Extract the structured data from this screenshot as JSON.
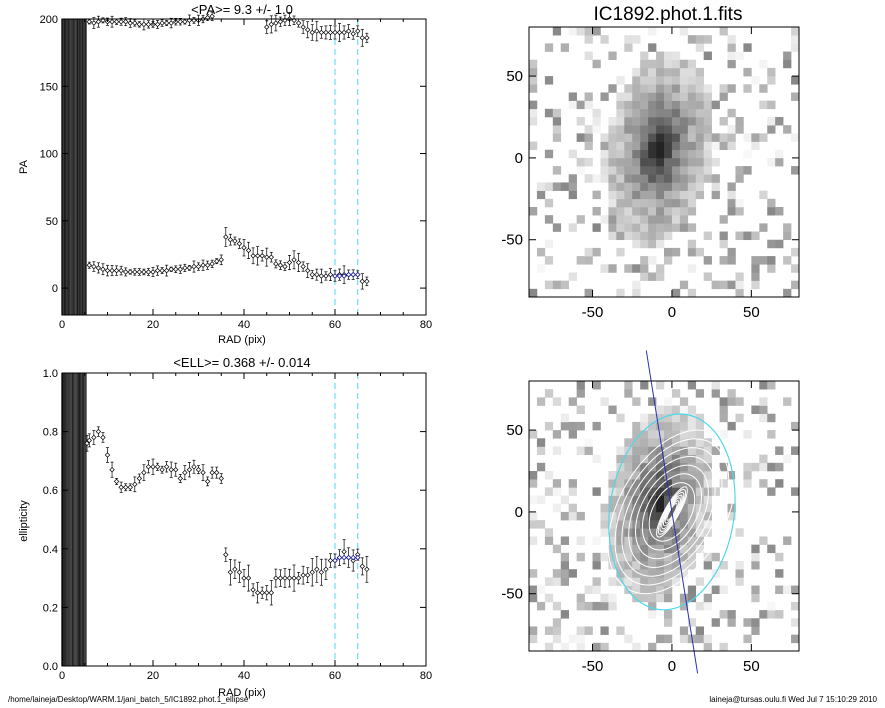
{
  "chart_data": [
    {
      "type": "scatter",
      "title": "<PA>=   9.3 +/-   1.0",
      "xlabel": "RAD (pix)",
      "ylabel": "PA",
      "xlim": [
        0,
        80
      ],
      "ylim": [
        -20,
        200
      ],
      "xticks": [
        0,
        20,
        40,
        60,
        80
      ],
      "yticks": [
        0,
        50,
        100,
        150,
        200
      ],
      "x_tick_labels": [
        "0",
        "20",
        "40",
        "60",
        "80"
      ],
      "y_tick_labels": [
        "0",
        "50",
        "100",
        "150",
        "200"
      ],
      "grid": false,
      "fit_range_lines": [
        60,
        65
      ],
      "dense_band": [
        0,
        5.5
      ],
      "series": [
        {
          "values": [
            [
              6,
              198
            ],
            [
              7,
              197
            ],
            [
              8,
              198
            ],
            [
              9,
              199
            ],
            [
              10,
              198
            ],
            [
              11,
              198
            ],
            [
              12,
              198
            ],
            [
              13,
              198
            ],
            [
              14,
              198
            ],
            [
              15,
              197
            ],
            [
              16,
              197
            ],
            [
              17,
              196
            ],
            [
              18,
              196
            ],
            [
              19,
              196
            ],
            [
              20,
              196
            ],
            [
              21,
              196
            ],
            [
              22,
              197
            ],
            [
              23,
              197
            ],
            [
              24,
              197
            ],
            [
              25,
              198
            ],
            [
              26,
              198
            ],
            [
              27,
              198
            ],
            [
              28,
              199
            ],
            [
              29,
              199
            ],
            [
              30,
              199
            ],
            [
              31,
              200
            ],
            [
              32,
              201
            ],
            [
              33,
              202
            ],
            [
              45,
              194
            ],
            [
              46,
              196
            ],
            [
              47,
              197
            ],
            [
              48,
              198
            ],
            [
              49,
              199
            ],
            [
              50,
              200
            ],
            [
              51,
              199
            ],
            [
              52,
              197
            ],
            [
              53,
              194
            ],
            [
              54,
              192
            ],
            [
              55,
              190
            ],
            [
              56,
              191
            ],
            [
              57,
              190
            ],
            [
              58,
              190
            ],
            [
              59,
              190
            ],
            [
              60,
              190
            ],
            [
              61,
              190
            ],
            [
              62,
              190
            ],
            [
              63,
              191
            ],
            [
              64,
              189
            ],
            [
              65,
              191
            ],
            [
              66,
              186
            ],
            [
              67,
              186
            ]
          ]
        },
        {
          "values": [
            [
              0.5,
              17
            ],
            [
              1,
              17
            ],
            [
              2,
              17
            ],
            [
              3,
              17
            ],
            [
              4,
              16
            ],
            [
              5,
              17
            ],
            [
              6,
              17
            ],
            [
              7,
              16
            ],
            [
              8,
              15
            ],
            [
              9,
              14
            ],
            [
              10,
              13
            ],
            [
              11,
              13
            ],
            [
              12,
              13
            ],
            [
              13,
              13
            ],
            [
              14,
              12
            ],
            [
              15,
              12
            ],
            [
              16,
              12
            ],
            [
              17,
              12
            ],
            [
              18,
              12
            ],
            [
              19,
              12
            ],
            [
              20,
              12
            ],
            [
              21,
              13
            ],
            [
              22,
              13
            ],
            [
              23,
              13
            ],
            [
              24,
              14
            ],
            [
              25,
              14
            ],
            [
              26,
              14
            ],
            [
              27,
              15
            ],
            [
              28,
              15
            ],
            [
              29,
              16
            ],
            [
              30,
              16
            ],
            [
              31,
              17
            ],
            [
              32,
              17
            ],
            [
              33,
              18
            ],
            [
              34,
              20
            ],
            [
              35,
              21
            ],
            [
              36,
              38
            ],
            [
              37,
              36
            ],
            [
              38,
              35
            ],
            [
              39,
              33
            ],
            [
              40,
              30
            ],
            [
              41,
              28
            ],
            [
              42,
              24
            ],
            [
              43,
              24
            ],
            [
              44,
              24
            ],
            [
              45,
              23
            ],
            [
              46,
              23
            ],
            [
              47,
              18
            ],
            [
              48,
              17
            ],
            [
              49,
              16
            ],
            [
              50,
              19
            ],
            [
              51,
              21
            ],
            [
              52,
              19
            ],
            [
              53,
              16
            ],
            [
              54,
              13
            ],
            [
              55,
              10
            ],
            [
              56,
              10
            ],
            [
              57,
              9
            ],
            [
              58,
              9
            ],
            [
              59,
              10
            ],
            [
              60,
              9
            ],
            [
              61,
              10
            ],
            [
              62,
              10
            ],
            [
              63,
              10
            ],
            [
              64,
              10
            ],
            [
              65,
              10
            ],
            [
              66,
              5
            ],
            [
              67,
              5
            ]
          ]
        }
      ],
      "fit_points": [
        [
          60,
          9
        ],
        [
          61,
          9
        ],
        [
          62,
          9
        ],
        [
          63,
          10
        ],
        [
          64,
          10
        ],
        [
          65,
          10
        ]
      ]
    },
    {
      "type": "scatter",
      "title": "<ELL>= 0.368 +/-  0.014",
      "xlabel": "RAD (pix)",
      "ylabel": "ellipticity",
      "xlim": [
        0,
        80
      ],
      "ylim": [
        0,
        1
      ],
      "xticks": [
        0,
        20,
        40,
        60,
        80
      ],
      "yticks": [
        0,
        0.2,
        0.4,
        0.6,
        0.8,
        1.0
      ],
      "x_tick_labels": [
        "0",
        "20",
        "40",
        "60",
        "80"
      ],
      "y_tick_labels": [
        "0.0",
        "0.2",
        "0.4",
        "0.6",
        "0.8",
        "1.0"
      ],
      "grid": false,
      "fit_range_lines": [
        60,
        65
      ],
      "dense_band": [
        0,
        5.5
      ],
      "series": [
        {
          "values": [
            [
              0.5,
              0.75
            ],
            [
              1.5,
              0.75
            ],
            [
              2.5,
              0.75
            ],
            [
              3.5,
              0.75
            ],
            [
              4.5,
              0.75
            ],
            [
              5.5,
              0.76
            ],
            [
              6,
              0.77
            ],
            [
              7,
              0.78
            ],
            [
              8,
              0.8
            ],
            [
              9,
              0.78
            ],
            [
              10,
              0.72
            ],
            [
              11,
              0.67
            ],
            [
              12,
              0.63
            ],
            [
              13,
              0.61
            ],
            [
              14,
              0.61
            ],
            [
              15,
              0.61
            ],
            [
              16,
              0.62
            ],
            [
              17,
              0.64
            ],
            [
              18,
              0.66
            ],
            [
              19,
              0.68
            ],
            [
              20,
              0.68
            ],
            [
              21,
              0.68
            ],
            [
              22,
              0.67
            ],
            [
              23,
              0.68
            ],
            [
              24,
              0.67
            ],
            [
              25,
              0.67
            ],
            [
              26,
              0.64
            ],
            [
              27,
              0.66
            ],
            [
              28,
              0.67
            ],
            [
              29,
              0.68
            ],
            [
              30,
              0.67
            ],
            [
              31,
              0.66
            ],
            [
              32,
              0.63
            ],
            [
              33,
              0.66
            ],
            [
              34,
              0.66
            ],
            [
              35,
              0.64
            ],
            [
              36,
              0.38
            ],
            [
              37,
              0.32
            ],
            [
              38,
              0.33
            ],
            [
              39,
              0.32
            ],
            [
              40,
              0.3
            ],
            [
              41,
              0.3
            ],
            [
              42,
              0.26
            ],
            [
              43,
              0.25
            ],
            [
              44,
              0.25
            ],
            [
              45,
              0.25
            ],
            [
              46,
              0.25
            ],
            [
              47,
              0.3
            ],
            [
              48,
              0.3
            ],
            [
              49,
              0.3
            ],
            [
              50,
              0.3
            ],
            [
              51,
              0.3
            ],
            [
              52,
              0.3
            ],
            [
              53,
              0.31
            ],
            [
              54,
              0.31
            ],
            [
              55,
              0.32
            ],
            [
              56,
              0.33
            ],
            [
              57,
              0.32
            ],
            [
              58,
              0.33
            ],
            [
              59,
              0.36
            ],
            [
              60,
              0.36
            ],
            [
              61,
              0.37
            ],
            [
              62,
              0.39
            ],
            [
              63,
              0.37
            ],
            [
              64,
              0.36
            ],
            [
              65,
              0.38
            ],
            [
              66,
              0.34
            ],
            [
              67,
              0.33
            ]
          ]
        }
      ],
      "fit_points": [
        [
          60,
          0.36
        ],
        [
          61,
          0.37
        ],
        [
          62,
          0.37
        ],
        [
          63,
          0.37
        ],
        [
          64,
          0.37
        ],
        [
          65,
          0.37
        ]
      ]
    },
    {
      "type": "heatmap",
      "title": "IC1892.phot.1.fits",
      "xlim": [
        -90,
        80
      ],
      "ylim": [
        -85,
        80
      ],
      "xticks": [
        -50,
        0,
        50
      ],
      "yticks": [
        -50,
        0,
        50
      ],
      "x_tick_labels": [
        "-50",
        "0",
        "50"
      ],
      "y_tick_labels": [
        "-50",
        "0",
        "50"
      ],
      "colormap": "grayscale",
      "contours": false
    },
    {
      "type": "heatmap",
      "title": "",
      "xlim": [
        -90,
        80
      ],
      "ylim": [
        -85,
        80
      ],
      "xticks": [
        -50,
        0,
        50
      ],
      "yticks": [
        -50,
        0,
        50
      ],
      "x_tick_labels": [
        "-50",
        "0",
        "50"
      ],
      "y_tick_labels": [
        "-50",
        "0",
        "50"
      ],
      "colormap": "grayscale",
      "contours": true,
      "major_axis_pa_deg": 9.3,
      "ellipticity": 0.368,
      "outer_ellipse_semi_major": 62
    }
  ],
  "footer": {
    "left": "/home/laineja/Desktop/WARM.1/jani_batch_5/IC1892.phot.1_ellipse",
    "right": "laineja@tursas.oulu.fi  Wed Jul  7 15:10:29 2010"
  },
  "colors": {
    "marker": "#000000",
    "fit_marker": "#1a1aa0",
    "fit_line": "#4fd8e8",
    "axis": "#000000",
    "major_axis_line": "#3030b0",
    "outer_ellipse": "#4fd8e8"
  }
}
